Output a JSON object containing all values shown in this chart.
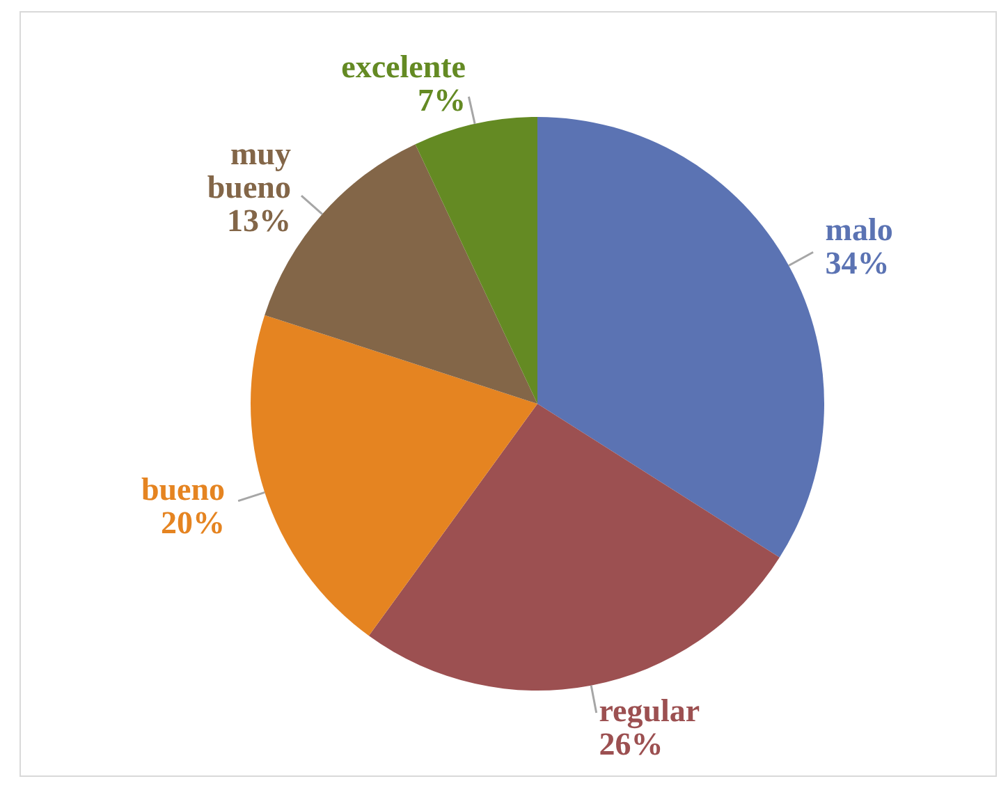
{
  "chart_data": {
    "type": "pie",
    "categories": [
      "malo",
      "regular",
      "bueno",
      "muy bueno",
      "excelente"
    ],
    "values": [
      34,
      26,
      20,
      13,
      7
    ],
    "value_labels": [
      "34%",
      "26%",
      "20%",
      "13%",
      "7%"
    ],
    "colors": [
      "#5b73b3",
      "#9c5051",
      "#e58421",
      "#836648",
      "#648a23"
    ]
  }
}
